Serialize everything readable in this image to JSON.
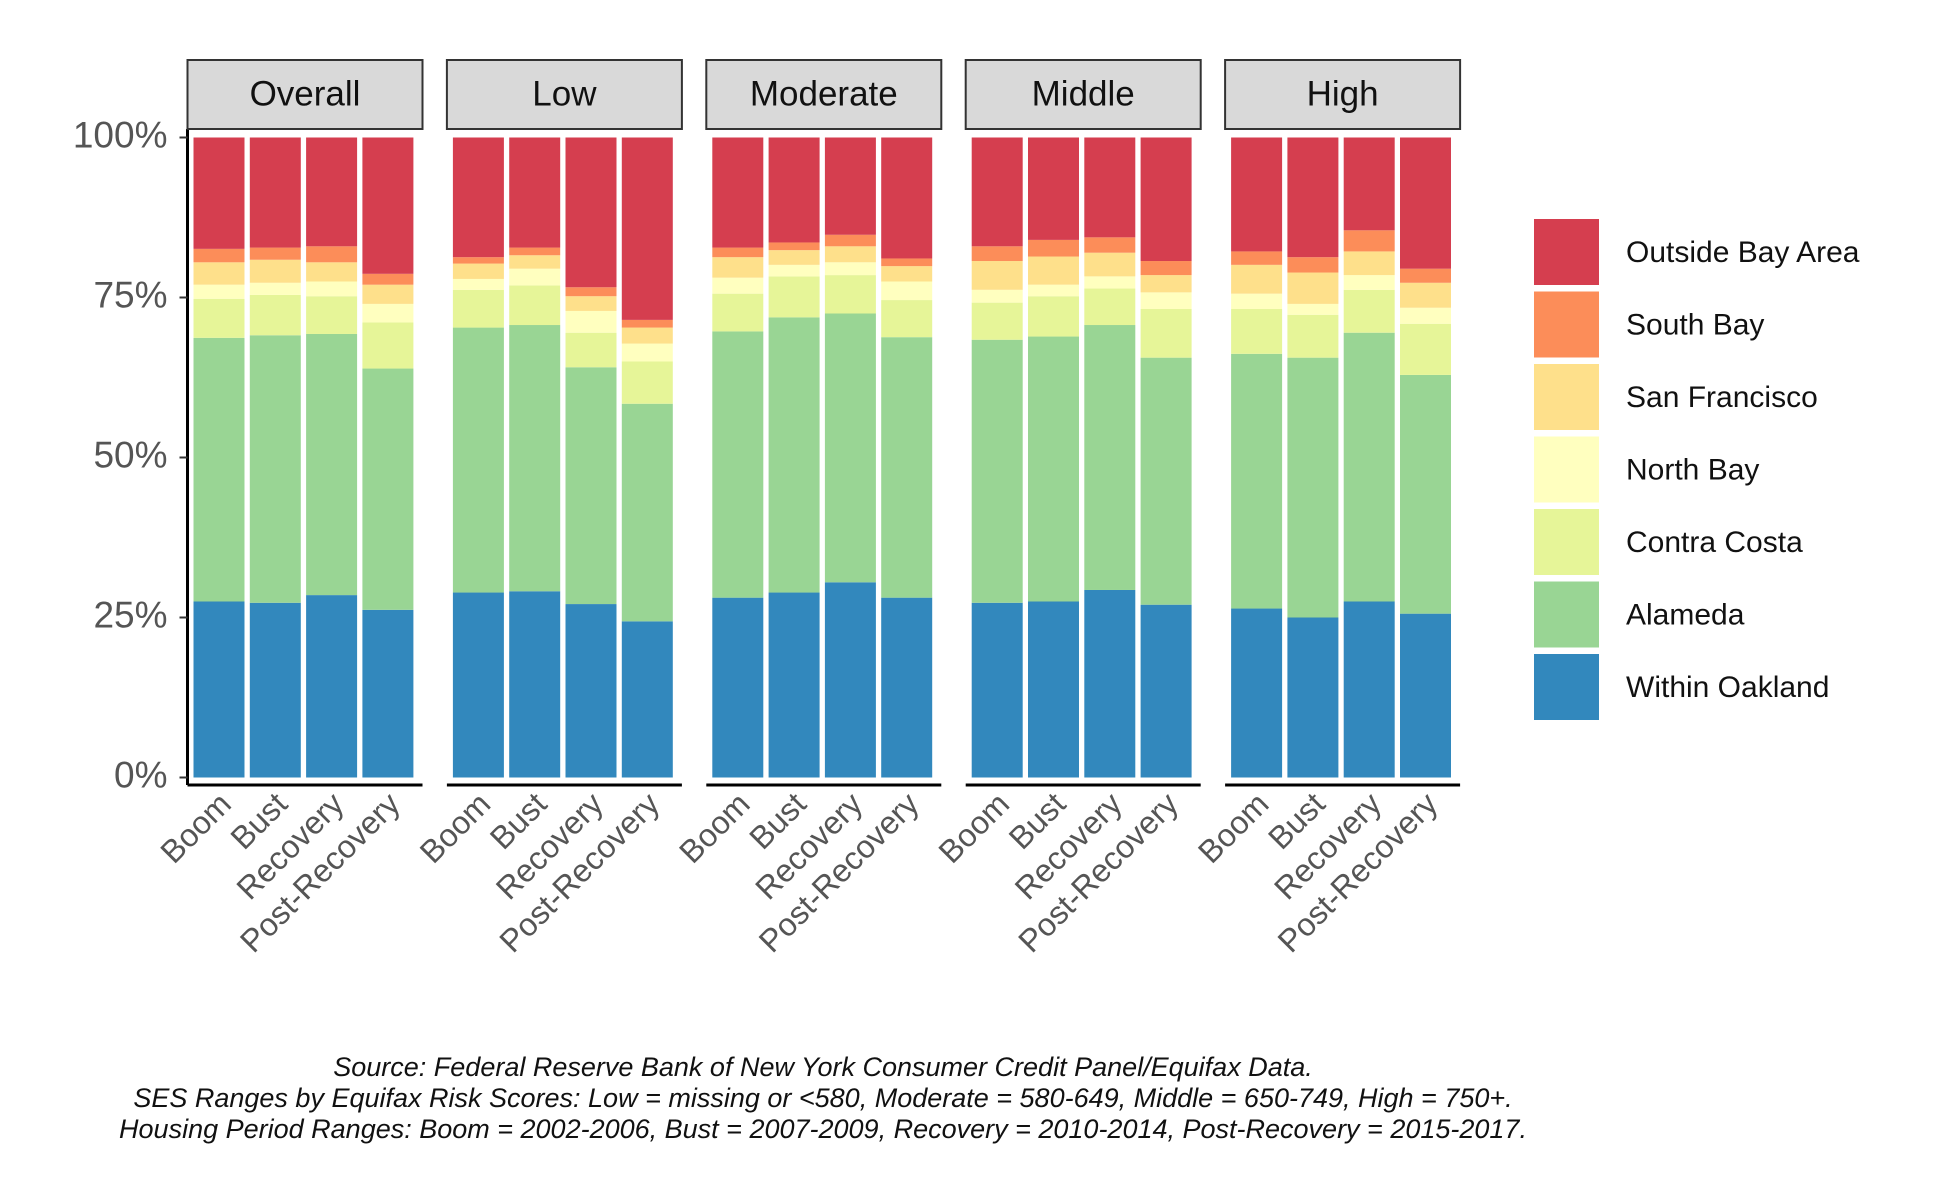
{
  "chart_data": [
    {
      "type": "bar",
      "stacked": true,
      "title": "Overall",
      "categories": [
        "Boom",
        "Bust",
        "Recovery",
        "Post-Recovery"
      ],
      "ylim": [
        0,
        100
      ],
      "yticks": [
        {
          "value": 0,
          "label": "0%"
        },
        {
          "value": 25,
          "label": "25%"
        },
        {
          "value": 50,
          "label": "50%"
        },
        {
          "value": 75,
          "label": "75%"
        },
        {
          "value": 100,
          "label": "100%"
        }
      ],
      "legend": "right",
      "series": [
        {
          "name": "Within Oakland",
          "color": "#3288bd",
          "values": [
            27.5,
            27.3,
            28.5,
            26.2
          ]
        },
        {
          "name": "Alameda",
          "color": "#99d594",
          "values": [
            41.2,
            41.8,
            40.8,
            37.7
          ]
        },
        {
          "name": "Contra Costa",
          "color": "#e6f598",
          "values": [
            6.1,
            6.3,
            5.9,
            7.2
          ]
        },
        {
          "name": "North Bay",
          "color": "#ffffbf",
          "values": [
            2.2,
            1.9,
            2.3,
            2.9
          ]
        },
        {
          "name": "San Francisco",
          "color": "#fee08b",
          "values": [
            3.5,
            3.6,
            3.0,
            3.0
          ]
        },
        {
          "name": "South Bay",
          "color": "#fc8d59",
          "values": [
            2.1,
            1.9,
            2.5,
            1.7
          ]
        },
        {
          "name": "Outside Bay Area",
          "color": "#d53e4f",
          "values": [
            17.4,
            17.2,
            17.0,
            21.3
          ]
        }
      ]
    },
    {
      "type": "bar",
      "stacked": true,
      "title": "Low",
      "categories": [
        "Boom",
        "Bust",
        "Recovery",
        "Post-Recovery"
      ],
      "ylim": [
        0,
        100
      ],
      "series": [
        {
          "name": "Within Oakland",
          "color": "#3288bd",
          "values": [
            28.9,
            29.1,
            27.1,
            24.4
          ]
        },
        {
          "name": "Alameda",
          "color": "#99d594",
          "values": [
            41.4,
            41.6,
            37.0,
            34.0
          ]
        },
        {
          "name": "Contra Costa",
          "color": "#e6f598",
          "values": [
            5.9,
            6.2,
            5.4,
            6.6
          ]
        },
        {
          "name": "North Bay",
          "color": "#ffffbf",
          "values": [
            1.7,
            2.6,
            3.4,
            2.8
          ]
        },
        {
          "name": "San Francisco",
          "color": "#fee08b",
          "values": [
            2.4,
            2.1,
            2.3,
            2.5
          ]
        },
        {
          "name": "South Bay",
          "color": "#fc8d59",
          "values": [
            1.0,
            1.2,
            1.4,
            1.2
          ]
        },
        {
          "name": "Outside Bay Area",
          "color": "#d53e4f",
          "values": [
            18.7,
            17.2,
            23.4,
            28.5
          ]
        }
      ]
    },
    {
      "type": "bar",
      "stacked": true,
      "title": "Moderate",
      "categories": [
        "Boom",
        "Bust",
        "Recovery",
        "Post-Recovery"
      ],
      "ylim": [
        0,
        100
      ],
      "series": [
        {
          "name": "Within Oakland",
          "color": "#3288bd",
          "values": [
            28.1,
            28.9,
            30.5,
            28.1
          ]
        },
        {
          "name": "Alameda",
          "color": "#99d594",
          "values": [
            41.6,
            43.0,
            42.0,
            40.7
          ]
        },
        {
          "name": "Contra Costa",
          "color": "#e6f598",
          "values": [
            5.9,
            6.4,
            6.0,
            5.8
          ]
        },
        {
          "name": "North Bay",
          "color": "#ffffbf",
          "values": [
            2.5,
            1.8,
            2.0,
            2.9
          ]
        },
        {
          "name": "San Francisco",
          "color": "#fee08b",
          "values": [
            3.2,
            2.3,
            2.5,
            2.4
          ]
        },
        {
          "name": "South Bay",
          "color": "#fc8d59",
          "values": [
            1.5,
            1.2,
            1.8,
            1.2
          ]
        },
        {
          "name": "Outside Bay Area",
          "color": "#d53e4f",
          "values": [
            17.2,
            16.4,
            15.2,
            18.9
          ]
        }
      ]
    },
    {
      "type": "bar",
      "stacked": true,
      "title": "Middle",
      "categories": [
        "Boom",
        "Bust",
        "Recovery",
        "Post-Recovery"
      ],
      "ylim": [
        0,
        100
      ],
      "series": [
        {
          "name": "Within Oakland",
          "color": "#3288bd",
          "values": [
            27.3,
            27.5,
            29.3,
            27.0
          ]
        },
        {
          "name": "Alameda",
          "color": "#99d594",
          "values": [
            41.1,
            41.4,
            41.4,
            38.6
          ]
        },
        {
          "name": "Contra Costa",
          "color": "#e6f598",
          "values": [
            5.8,
            6.3,
            5.7,
            7.6
          ]
        },
        {
          "name": "North Bay",
          "color": "#ffffbf",
          "values": [
            2.0,
            1.8,
            1.9,
            2.6
          ]
        },
        {
          "name": "San Francisco",
          "color": "#fee08b",
          "values": [
            4.5,
            4.4,
            3.7,
            2.7
          ]
        },
        {
          "name": "South Bay",
          "color": "#fc8d59",
          "values": [
            2.3,
            2.6,
            2.4,
            2.2
          ]
        },
        {
          "name": "Outside Bay Area",
          "color": "#d53e4f",
          "values": [
            17.0,
            16.0,
            15.6,
            19.3
          ]
        }
      ]
    },
    {
      "type": "bar",
      "stacked": true,
      "title": "High",
      "categories": [
        "Boom",
        "Bust",
        "Recovery",
        "Post-Recovery"
      ],
      "ylim": [
        0,
        100
      ],
      "series": [
        {
          "name": "Within Oakland",
          "color": "#3288bd",
          "values": [
            26.4,
            25.0,
            27.5,
            25.6
          ]
        },
        {
          "name": "Alameda",
          "color": "#99d594",
          "values": [
            39.8,
            40.6,
            42.0,
            37.3
          ]
        },
        {
          "name": "Contra Costa",
          "color": "#e6f598",
          "values": [
            7.0,
            6.7,
            6.7,
            8.0
          ]
        },
        {
          "name": "North Bay",
          "color": "#ffffbf",
          "values": [
            2.4,
            1.7,
            2.3,
            2.5
          ]
        },
        {
          "name": "San Francisco",
          "color": "#fee08b",
          "values": [
            4.5,
            4.9,
            3.7,
            3.9
          ]
        },
        {
          "name": "South Bay",
          "color": "#fc8d59",
          "values": [
            2.1,
            2.4,
            3.3,
            2.2
          ]
        },
        {
          "name": "Outside Bay Area",
          "color": "#d53e4f",
          "values": [
            17.8,
            18.7,
            14.5,
            20.5
          ]
        }
      ]
    }
  ],
  "notes": [
    "Source: Federal Reserve Bank of New York Consumer Credit Panel/Equifax Data.",
    "SES Ranges by Equifax Risk Scores: Low = missing or <580, Moderate = 580-649, Middle = 650-749, High = 750+.",
    "Housing Period Ranges: Boom = 2002-2006, Bust = 2007-2009, Recovery = 2010-2014, Post-Recovery = 2015-2017."
  ]
}
